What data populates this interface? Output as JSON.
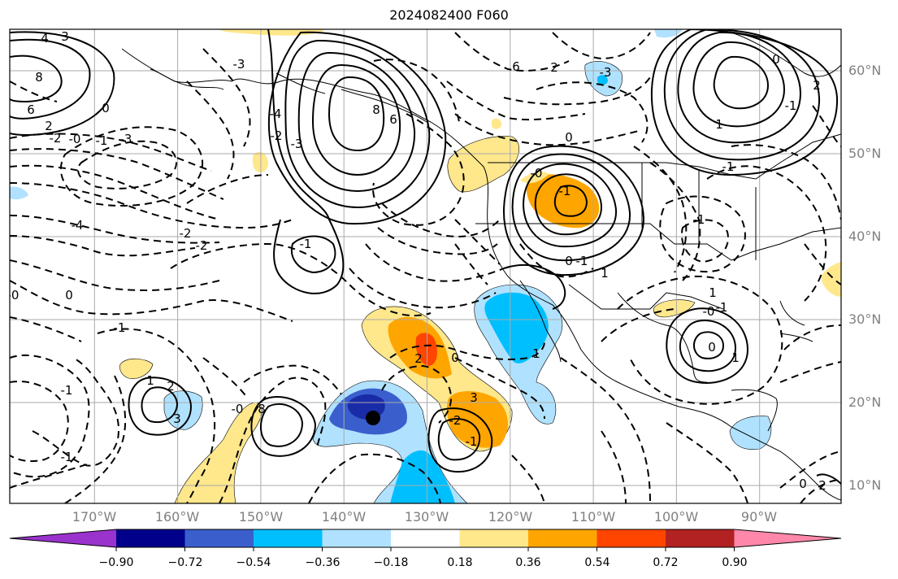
{
  "title": "2024082400 F060",
  "lat_labels": [
    "60°N",
    "50°N",
    "40°N",
    "30°N",
    "20°N",
    "10°N"
  ],
  "lon_labels": [
    "170°W",
    "160°W",
    "150°W",
    "140°W",
    "130°W",
    "120°W",
    "110°W",
    "100°W",
    "90°W"
  ],
  "colorbar": {
    "ticks": [
      "−0.90",
      "−0.72",
      "−0.54",
      "−0.36",
      "−0.18",
      "0.18",
      "0.36",
      "0.54",
      "0.72",
      "0.90"
    ],
    "colors": [
      "#9a32cd",
      "#00008b",
      "#3a5fcd",
      "#00bfff",
      "#b0e2ff",
      "#ffffff",
      "#ffe78c",
      "#ffa500",
      "#ff4500",
      "#b22222",
      "#ff88aa"
    ]
  },
  "map": {
    "extent_lon": [
      -180,
      -80
    ],
    "extent_lat": [
      7,
      65
    ],
    "gridline_color": "#aaaaaa",
    "storm_marker": {
      "lon": -136,
      "lat": 18.5
    },
    "contour_labels": [
      "3",
      "4",
      "8",
      "6",
      "0",
      "2",
      "-2",
      "-0",
      "-1",
      "-3",
      "-4",
      "-2",
      "-2",
      "-1",
      "-1",
      "-1",
      "0",
      "-0",
      "1",
      "2",
      "3",
      "8",
      "6",
      "-3",
      "-4",
      "-2",
      "-3",
      "-1",
      "-0",
      "8",
      "6",
      "2",
      "0",
      "-3",
      "-1",
      "-1",
      "1",
      "-0",
      "-1",
      "1",
      "2",
      "3",
      "-2",
      "-1",
      "0",
      "-0",
      "-1",
      "0",
      "1",
      "0",
      "2",
      "0",
      "1",
      "0",
      "-1",
      "1",
      "2",
      "-1",
      "0"
    ]
  }
}
